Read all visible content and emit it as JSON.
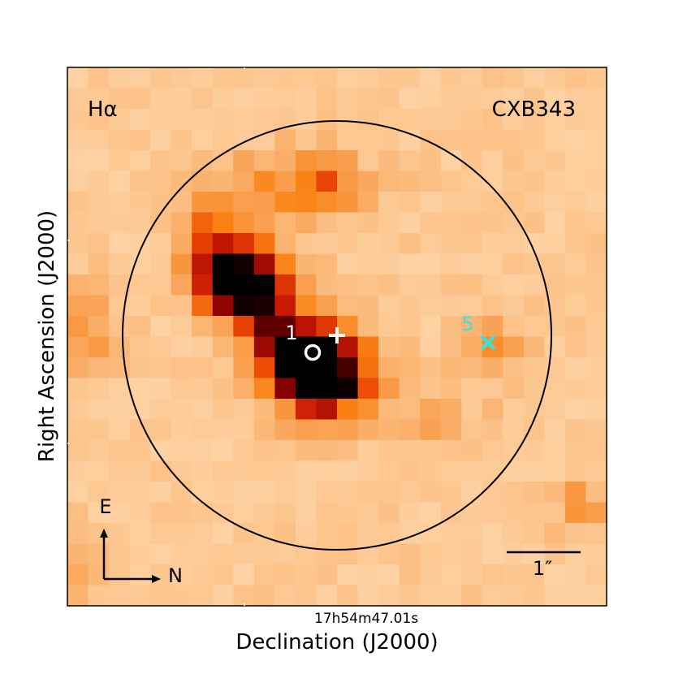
{
  "figure": {
    "filter_label": "Hα",
    "object_label": "CXB343",
    "xlabel": "Declination (J2000)",
    "ylabel": "Right Ascension (J2000)",
    "x_tick_label": "17h54m47.01s",
    "compass": {
      "east": "E",
      "north": "N"
    },
    "scale_bar_label": "1″",
    "markers": [
      {
        "label": "1",
        "symbol": "circle",
        "color": "#ffffff"
      },
      {
        "label": "",
        "symbol": "plus",
        "color": "#ffffff"
      },
      {
        "label": "5",
        "symbol": "x",
        "color": "#33e6e6"
      }
    ],
    "colormap": "gist_heat_r",
    "image_grid": {
      "cols": 26,
      "rows": 26
    }
  }
}
